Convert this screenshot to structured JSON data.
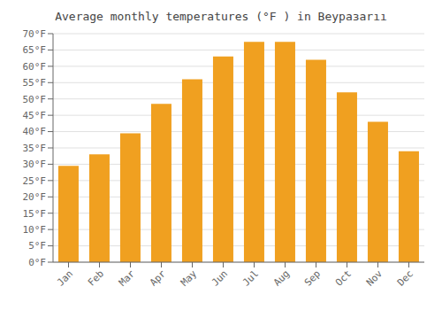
{
  "chart_data": {
    "type": "bar",
    "title": "Average monthly temperatures (°F ) in Beypaзarıı",
    "categories": [
      "Jan",
      "Feb",
      "Mar",
      "Apr",
      "May",
      "Jun",
      "Jul",
      "Aug",
      "Sep",
      "Oct",
      "Nov",
      "Dec"
    ],
    "values": [
      29.5,
      33.0,
      39.5,
      48.5,
      56.0,
      63.0,
      67.5,
      67.5,
      62.0,
      52.0,
      43.0,
      34.0
    ],
    "color": "#F0A020",
    "ylim": [
      0,
      70
    ],
    "yticks": [
      {
        "value": 0,
        "label": "0°F"
      },
      {
        "value": 5,
        "label": "5°F"
      },
      {
        "value": 10,
        "label": "10°F"
      },
      {
        "value": 15,
        "label": "15°F"
      },
      {
        "value": 20,
        "label": "20°F"
      },
      {
        "value": 25,
        "label": "25°F"
      },
      {
        "value": 30,
        "label": "30°F"
      },
      {
        "value": 35,
        "label": "35°F"
      },
      {
        "value": 40,
        "label": "40°F"
      },
      {
        "value": 45,
        "label": "45°F"
      },
      {
        "value": 50,
        "label": "50°F"
      },
      {
        "value": 55,
        "label": "55°F"
      },
      {
        "value": 60,
        "label": "60°F"
      },
      {
        "value": 65,
        "label": "65°F"
      },
      {
        "value": 70,
        "label": "70°F"
      }
    ],
    "grid": true
  }
}
